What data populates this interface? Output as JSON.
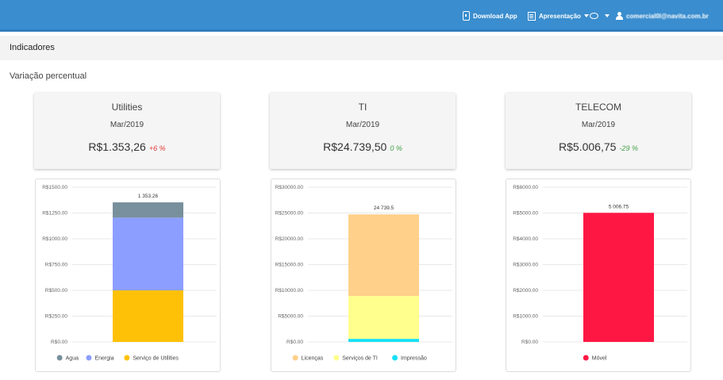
{
  "header": {
    "download_label": "Download App",
    "presentation_label": "Apresentação",
    "user_email": "comercial0l@navita.com.br",
    "icons": [
      "download-app-icon",
      "presentation-icon",
      "chat-icon",
      "user-icon"
    ]
  },
  "section": {
    "title": "Indicadores"
  },
  "subtitle": "Variação percentual",
  "kpis": [
    {
      "name": "Utilities",
      "period": "Mar/2019",
      "value": "R$1.353,26",
      "change": "+6 %",
      "change_color": "#e53935"
    },
    {
      "name": "TI",
      "period": "Mar/2019",
      "value": "R$24.739,50",
      "change": "0 %",
      "change_color": "#43a047"
    },
    {
      "name": "TELECOM",
      "period": "Mar/2019",
      "value": "R$5.006,75",
      "change": "-29 %",
      "change_color": "#43a047"
    }
  ],
  "chart_data": [
    {
      "type": "bar",
      "stacked": true,
      "categories": [
        ""
      ],
      "ylim": [
        0,
        1500
      ],
      "y_ticks": [
        "R$0.00",
        "R$250.00",
        "R$500.00",
        "R$750.00",
        "R$1000.00",
        "R$1250.00",
        "R$1500.00"
      ],
      "total_label": "1 353.26",
      "grid": true,
      "legend_position": "bottom",
      "series": [
        {
          "name": "Serviço de Utilities",
          "values": [
            500
          ],
          "color": "#ffc107"
        },
        {
          "name": "Energia",
          "values": [
            705
          ],
          "color": "#8c9eff"
        },
        {
          "name": "Agua",
          "values": [
            148.26
          ],
          "color": "#78909c"
        }
      ]
    },
    {
      "type": "bar",
      "stacked": true,
      "categories": [
        ""
      ],
      "ylim": [
        0,
        30000
      ],
      "y_ticks": [
        "R$0.00",
        "R$5000.00",
        "R$10000.00",
        "R$15000.00",
        "R$20000.00",
        "R$25000.00",
        "R$30000.00"
      ],
      "total_label": "24 739.5",
      "grid": true,
      "legend_position": "bottom",
      "series": [
        {
          "name": "Impressão",
          "values": [
            600
          ],
          "color": "#18e0f5"
        },
        {
          "name": "Serviços de TI",
          "values": [
            8300
          ],
          "color": "#ffff8d"
        },
        {
          "name": "Licenças",
          "values": [
            15839.5
          ],
          "color": "#ffd08a"
        }
      ]
    },
    {
      "type": "bar",
      "stacked": true,
      "categories": [
        ""
      ],
      "ylim": [
        0,
        6000
      ],
      "y_ticks": [
        "R$0.00",
        "R$1000.00",
        "R$2000.00",
        "R$3000.00",
        "R$4000.00",
        "R$5000.00",
        "R$6000.00"
      ],
      "total_label": "5 006.75",
      "grid": true,
      "legend_position": "bottom",
      "series": [
        {
          "name": "Móvel",
          "values": [
            5006.75
          ],
          "color": "#ff1744"
        }
      ]
    }
  ],
  "legend_order": [
    [
      "Agua",
      "Energia",
      "Serviço de Utilities"
    ],
    [
      "Licenças",
      "Serviços de TI",
      "Impressão"
    ],
    [
      "Móvel"
    ]
  ]
}
